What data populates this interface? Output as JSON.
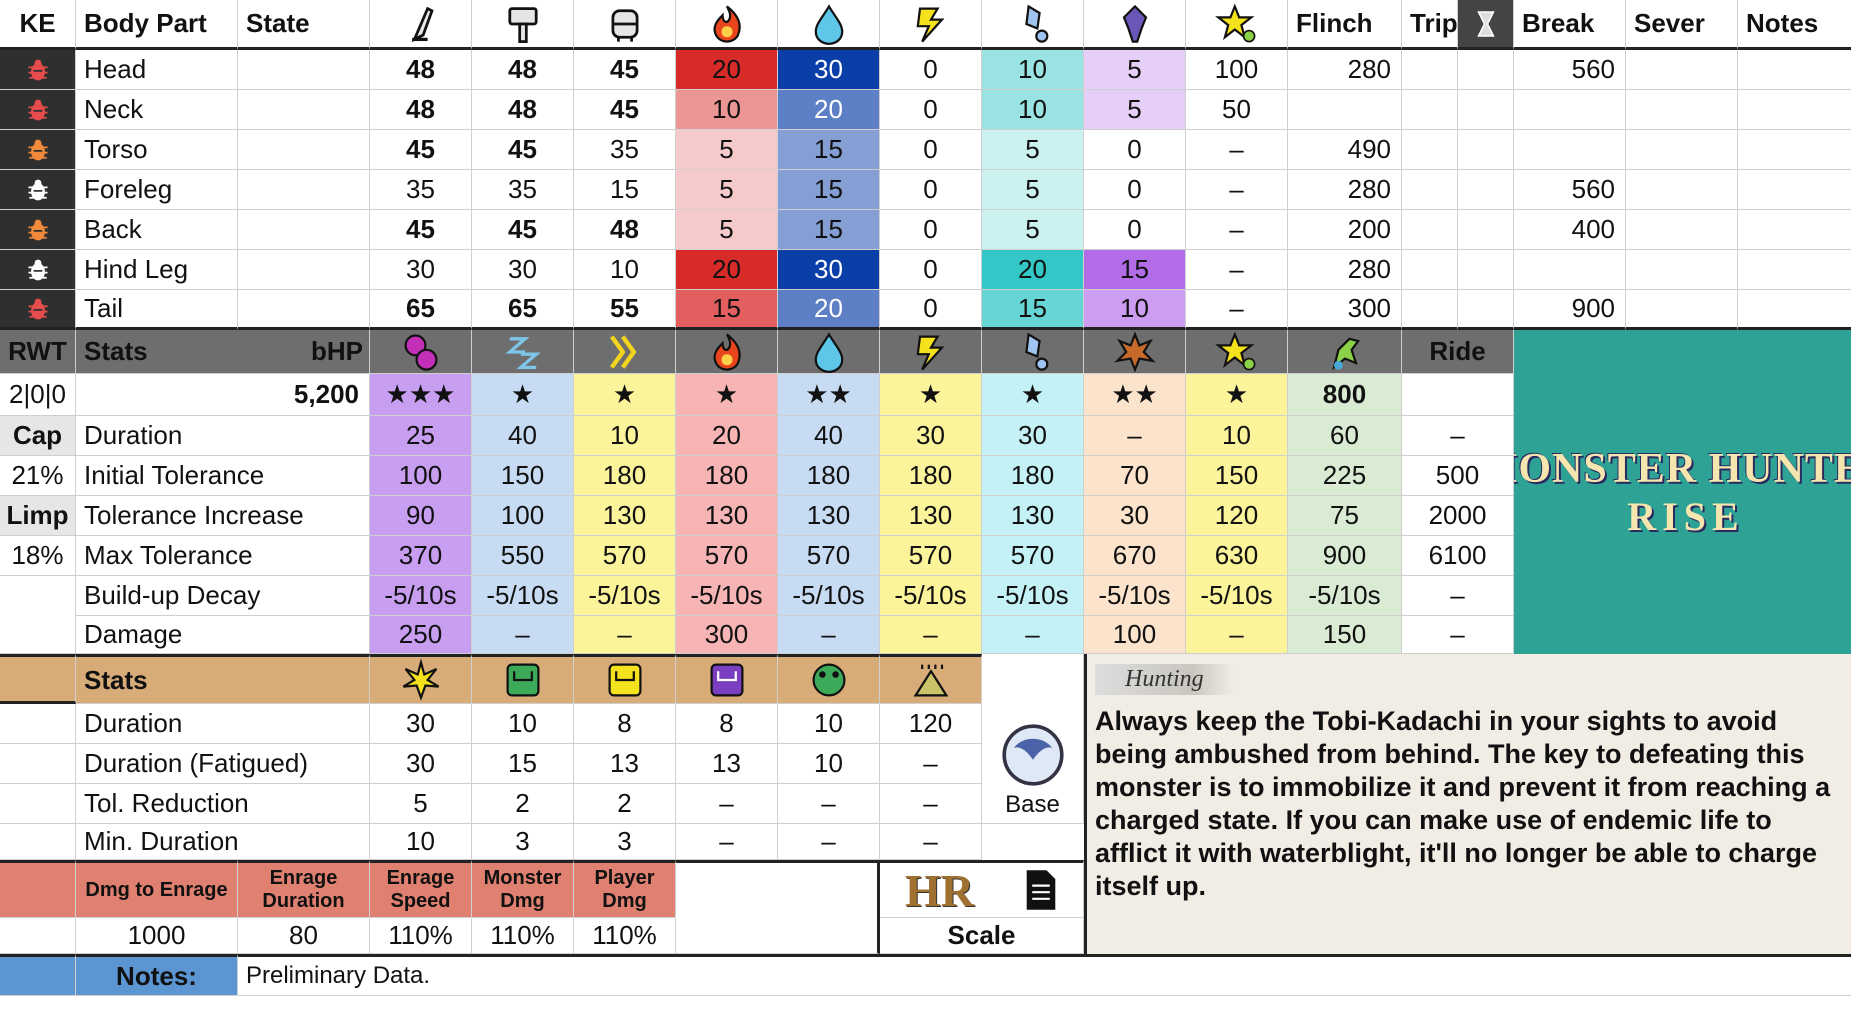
{
  "header": {
    "ke": "KE",
    "body_part": "Body Part",
    "state": "State",
    "flinch": "Flinch",
    "trip": "Trip",
    "break": "Break",
    "sever": "Sever",
    "notes": "Notes"
  },
  "hitzones": [
    {
      "part": "Head",
      "cut": "48",
      "blunt": "48",
      "shot": "45",
      "fire": "20",
      "water": "30",
      "thunder": "0",
      "ice": "10",
      "dragon": "5",
      "stun": "100",
      "flinch": "280",
      "break": "560"
    },
    {
      "part": "Neck",
      "cut": "48",
      "blunt": "48",
      "shot": "45",
      "fire": "10",
      "water": "20",
      "thunder": "0",
      "ice": "10",
      "dragon": "5",
      "stun": "50",
      "flinch": "",
      "break": ""
    },
    {
      "part": "Torso",
      "cut": "45",
      "blunt": "45",
      "shot": "35",
      "fire": "5",
      "water": "15",
      "thunder": "0",
      "ice": "5",
      "dragon": "0",
      "stun": "–",
      "flinch": "490",
      "break": ""
    },
    {
      "part": "Foreleg",
      "cut": "35",
      "blunt": "35",
      "shot": "15",
      "fire": "5",
      "water": "15",
      "thunder": "0",
      "ice": "5",
      "dragon": "0",
      "stun": "–",
      "flinch": "280",
      "break": "560"
    },
    {
      "part": "Back",
      "cut": "45",
      "blunt": "45",
      "shot": "48",
      "fire": "5",
      "water": "15",
      "thunder": "0",
      "ice": "5",
      "dragon": "0",
      "stun": "–",
      "flinch": "200",
      "break": "400"
    },
    {
      "part": "Hind Leg",
      "cut": "30",
      "blunt": "30",
      "shot": "10",
      "fire": "20",
      "water": "30",
      "thunder": "0",
      "ice": "20",
      "dragon": "15",
      "stun": "–",
      "flinch": "280",
      "break": ""
    },
    {
      "part": "Tail",
      "cut": "65",
      "blunt": "65",
      "shot": "55",
      "fire": "15",
      "water": "20",
      "thunder": "0",
      "ice": "15",
      "dragon": "10",
      "stun": "–",
      "flinch": "300",
      "break": "900"
    }
  ],
  "stats_header": {
    "rwt": "RWT",
    "stats": "Stats",
    "bhp": "bHP",
    "ride": "Ride"
  },
  "side": {
    "rwt_value": "2|0|0",
    "cap": "Cap",
    "cap_value": "21%",
    "limp": "Limp",
    "limp_value": "18%"
  },
  "bhp": "5,200",
  "stars": [
    "★★★",
    "★",
    "★",
    "★",
    "★★",
    "★",
    "★",
    "★★",
    "★",
    "800",
    ""
  ],
  "status_rows": [
    {
      "label": "Duration",
      "values": [
        "25",
        "40",
        "10",
        "20",
        "40",
        "30",
        "30",
        "–",
        "10",
        "60",
        "–"
      ]
    },
    {
      "label": "Initial Tolerance",
      "values": [
        "100",
        "150",
        "180",
        "180",
        "180",
        "180",
        "180",
        "70",
        "150",
        "225",
        "500"
      ]
    },
    {
      "label": "Tolerance Increase",
      "values": [
        "90",
        "100",
        "130",
        "130",
        "130",
        "130",
        "130",
        "30",
        "120",
        "75",
        "2000"
      ]
    },
    {
      "label": "Max Tolerance",
      "values": [
        "370",
        "550",
        "570",
        "570",
        "570",
        "570",
        "570",
        "670",
        "630",
        "900",
        "6100"
      ]
    },
    {
      "label": "Build-up Decay",
      "values": [
        "-5/10s",
        "-5/10s",
        "-5/10s",
        "-5/10s",
        "-5/10s",
        "-5/10s",
        "-5/10s",
        "-5/10s",
        "-5/10s",
        "-5/10s",
        "–"
      ]
    },
    {
      "label": "Damage",
      "values": [
        "250",
        "–",
        "–",
        "300",
        "–",
        "–",
        "–",
        "100",
        "–",
        "150",
        "–"
      ]
    }
  ],
  "trap_header": "Stats",
  "trap_rows": [
    {
      "label": "Duration",
      "values": [
        "30",
        "10",
        "8",
        "8",
        "10",
        "120"
      ]
    },
    {
      "label": "Duration (Fatigued)",
      "values": [
        "30",
        "15",
        "13",
        "13",
        "10",
        "–"
      ]
    },
    {
      "label": "Tol. Reduction",
      "values": [
        "5",
        "2",
        "2",
        "–",
        "–",
        "–"
      ]
    },
    {
      "label": "Min. Duration",
      "values": [
        "10",
        "3",
        "3",
        "–",
        "–",
        "–"
      ]
    }
  ],
  "base_label": "Base",
  "enrage": {
    "labels": [
      "Dmg to Enrage",
      "Enrage Duration",
      "Enrage Speed",
      "Monster Dmg",
      "Player Dmg"
    ],
    "values": [
      "1000",
      "80",
      "110%",
      "110%",
      "110%"
    ]
  },
  "hr_label": "HR",
  "scale_label": "Scale",
  "logo": {
    "line1": "MONSTER HUNTER",
    "line2": "RISE"
  },
  "hunting": {
    "tag": "Hunting",
    "text": "Always keep the Tobi-Kadachi in your sights to avoid being ambushed from behind. The key to defeating this monster is to immobilize it and prevent it from reaching a charged state. If you can make use of endemic life to afflict it with waterblight, it'll no longer be able to charge itself up."
  },
  "notes": {
    "label": "Notes:",
    "text": "Preliminary Data."
  },
  "colors": {
    "fire_max": "#d92a2a",
    "water_max": "#0b3fa8",
    "ice_max": "#34c7c7",
    "dragon_max": "#b26ce8",
    "logo_bg": "#2ea395"
  },
  "icons": {
    "weapons": [
      "cut-icon",
      "blunt-icon",
      "shot-icon"
    ],
    "elements": [
      "fire-icon",
      "water-icon",
      "thunder-icon",
      "ice-icon",
      "dragon-icon",
      "stun-icon"
    ],
    "statuses": [
      "poison-icon",
      "sleep-icon",
      "paralysis-icon",
      "blast-icon",
      "exhaust-icon",
      "wyvern-ride-icon"
    ],
    "traps": [
      "flash-icon",
      "pitfall-trap-icon",
      "shock-trap-icon",
      "tranq-icon",
      "frog-icon",
      "dung-icon"
    ]
  }
}
